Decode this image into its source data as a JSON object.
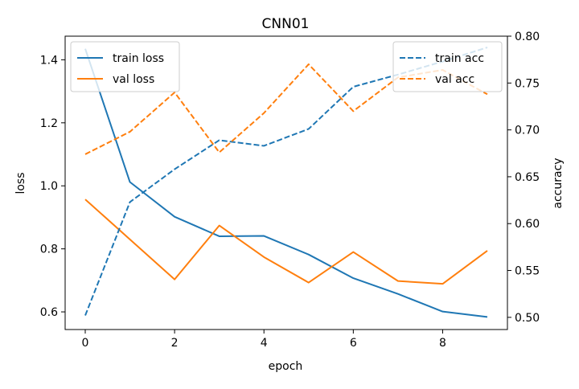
{
  "chart_data": {
    "type": "line",
    "title": "CNN01",
    "xlabel": "epoch",
    "ylabel_left": "loss",
    "ylabel_right": "accuracy",
    "x": [
      0,
      1,
      2,
      3,
      4,
      5,
      6,
      7,
      8,
      9
    ],
    "xlim": [
      -0.45,
      9.45
    ],
    "xticks": [
      0,
      2,
      4,
      6,
      8
    ],
    "ylim_left": [
      0.544,
      1.475
    ],
    "yticks_left": [
      0.6,
      0.8,
      1.0,
      1.2,
      1.4
    ],
    "ylim_right": [
      0.487,
      0.8
    ],
    "yticks_right": [
      0.5,
      0.55,
      0.6,
      0.65,
      0.7,
      0.75,
      0.8
    ],
    "grid": false,
    "series": [
      {
        "name": "train loss",
        "axis": "left",
        "style": "solid",
        "color": "#1f77b4",
        "values": [
          1.435,
          1.012,
          0.902,
          0.84,
          0.841,
          0.782,
          0.707,
          0.657,
          0.601,
          0.584
        ]
      },
      {
        "name": "val loss",
        "axis": "left",
        "style": "solid",
        "color": "#ff7f0e",
        "values": [
          0.957,
          0.83,
          0.703,
          0.874,
          0.774,
          0.693,
          0.79,
          0.698,
          0.689,
          0.794
        ]
      },
      {
        "name": "train acc",
        "axis": "right",
        "style": "dashed",
        "color": "#1f77b4",
        "values": [
          0.502,
          0.623,
          0.658,
          0.689,
          0.683,
          0.701,
          0.746,
          0.759,
          0.773,
          0.788
        ]
      },
      {
        "name": "val acc",
        "axis": "right",
        "style": "dashed",
        "color": "#ff7f0e",
        "values": [
          0.674,
          0.698,
          0.74,
          0.676,
          0.718,
          0.77,
          0.72,
          0.756,
          0.764,
          0.738
        ]
      }
    ],
    "legend_left": {
      "placement": "top-left",
      "entries": [
        "train loss",
        "val loss"
      ]
    },
    "legend_right": {
      "placement": "top-right",
      "entries": [
        "train acc",
        "val acc"
      ]
    }
  }
}
